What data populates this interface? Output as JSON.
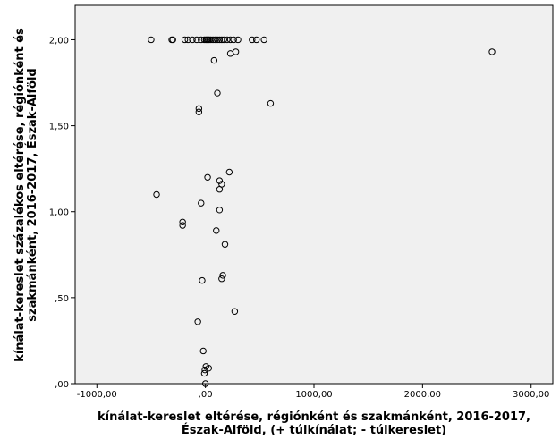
{
  "chart_data": {
    "type": "scatter",
    "xlabel_lines": [
      "kínálat-kereslet eltérése, régiónként és szakmánként, 2016-2017,",
      "Észak-Alföld, (+ túlkínálat; - túlkereslet)"
    ],
    "ylabel_lines": [
      "kínálat-kereslet százalékos eltérése, régiónként és",
      "szakmánként, 2016-2017, Észak-Alföld"
    ],
    "xlim": [
      -1200,
      3200
    ],
    "ylim": [
      0,
      2.2
    ],
    "x_ticks": [
      {
        "value": -1000,
        "label": "-1000,00"
      },
      {
        "value": 0,
        "label": ",00"
      },
      {
        "value": 1000,
        "label": "1000,00"
      },
      {
        "value": 2000,
        "label": "2000,00"
      },
      {
        "value": 3000,
        "label": "3000,00"
      }
    ],
    "y_ticks": [
      {
        "value": 0,
        "label": ",00"
      },
      {
        "value": 0.5,
        "label": ",50"
      },
      {
        "value": 1.0,
        "label": "1,00"
      },
      {
        "value": 1.5,
        "label": "1,50"
      },
      {
        "value": 2.0,
        "label": "2,00"
      }
    ],
    "grid": false,
    "plot_background": "#f0f0f0",
    "marker": "open-circle",
    "points": [
      {
        "x": -500,
        "y": 2.0
      },
      {
        "x": -310,
        "y": 2.0
      },
      {
        "x": -300,
        "y": 2.0
      },
      {
        "x": -190,
        "y": 2.0
      },
      {
        "x": -160,
        "y": 2.0
      },
      {
        "x": -120,
        "y": 2.0
      },
      {
        "x": -80,
        "y": 2.0
      },
      {
        "x": -40,
        "y": 2.0
      },
      {
        "x": -10,
        "y": 2.0
      },
      {
        "x": 5,
        "y": 2.0
      },
      {
        "x": 15,
        "y": 2.0
      },
      {
        "x": 25,
        "y": 2.0
      },
      {
        "x": 35,
        "y": 2.0
      },
      {
        "x": 50,
        "y": 2.0
      },
      {
        "x": 70,
        "y": 2.0
      },
      {
        "x": 90,
        "y": 2.0
      },
      {
        "x": 110,
        "y": 2.0
      },
      {
        "x": 130,
        "y": 2.0
      },
      {
        "x": 150,
        "y": 2.0
      },
      {
        "x": 170,
        "y": 2.0
      },
      {
        "x": 200,
        "y": 2.0
      },
      {
        "x": 230,
        "y": 2.0
      },
      {
        "x": 260,
        "y": 2.0
      },
      {
        "x": 300,
        "y": 2.0
      },
      {
        "x": 430,
        "y": 2.0
      },
      {
        "x": 470,
        "y": 2.0
      },
      {
        "x": 540,
        "y": 2.0
      },
      {
        "x": 2640,
        "y": 1.93
      },
      {
        "x": 280,
        "y": 1.93
      },
      {
        "x": 230,
        "y": 1.92
      },
      {
        "x": 80,
        "y": 1.88
      },
      {
        "x": 110,
        "y": 1.69
      },
      {
        "x": 600,
        "y": 1.63
      },
      {
        "x": -60,
        "y": 1.6
      },
      {
        "x": -60,
        "y": 1.58
      },
      {
        "x": 220,
        "y": 1.23
      },
      {
        "x": 20,
        "y": 1.2
      },
      {
        "x": 130,
        "y": 1.18
      },
      {
        "x": 150,
        "y": 1.16
      },
      {
        "x": 130,
        "y": 1.13
      },
      {
        "x": -450,
        "y": 1.1
      },
      {
        "x": -40,
        "y": 1.05
      },
      {
        "x": 130,
        "y": 1.01
      },
      {
        "x": -210,
        "y": 0.94
      },
      {
        "x": -210,
        "y": 0.92
      },
      {
        "x": 100,
        "y": 0.89
      },
      {
        "x": 180,
        "y": 0.81
      },
      {
        "x": 160,
        "y": 0.63
      },
      {
        "x": 150,
        "y": 0.61
      },
      {
        "x": -30,
        "y": 0.6
      },
      {
        "x": 270,
        "y": 0.42
      },
      {
        "x": -70,
        "y": 0.36
      },
      {
        "x": -20,
        "y": 0.19
      },
      {
        "x": 30,
        "y": 0.09
      },
      {
        "x": 5,
        "y": 0.1
      },
      {
        "x": -5,
        "y": 0.08
      },
      {
        "x": -10,
        "y": 0.06
      },
      {
        "x": 0,
        "y": 0.0
      }
    ]
  }
}
